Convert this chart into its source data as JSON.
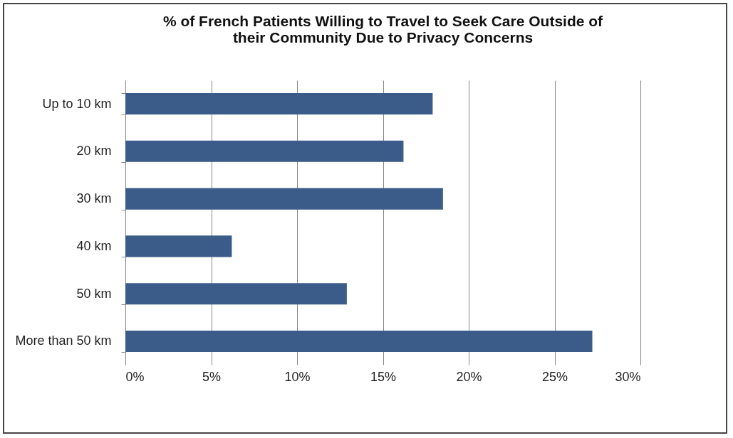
{
  "chart_data": {
    "type": "bar",
    "orientation": "horizontal",
    "title": "% of French Patients Willing to Travel to Seek Care Outside of their Community Due to Privacy Concerns",
    "categories": [
      "Up to 10 km",
      "20 km",
      "30 km",
      "40 km",
      "50 km",
      "More than 50 km"
    ],
    "values": [
      17.9,
      16.2,
      18.5,
      6.2,
      12.9,
      27.2
    ],
    "color": "#3b5b88",
    "xlim": [
      0,
      30
    ],
    "xticks": [
      {
        "value": 0,
        "label": "0%"
      },
      {
        "value": 5,
        "label": "5%"
      },
      {
        "value": 10,
        "label": "10%"
      },
      {
        "value": 15,
        "label": "15%"
      },
      {
        "value": 20,
        "label": "20%"
      },
      {
        "value": 25,
        "label": "25%"
      },
      {
        "value": 30,
        "label": "30%"
      }
    ],
    "grid": "x"
  }
}
